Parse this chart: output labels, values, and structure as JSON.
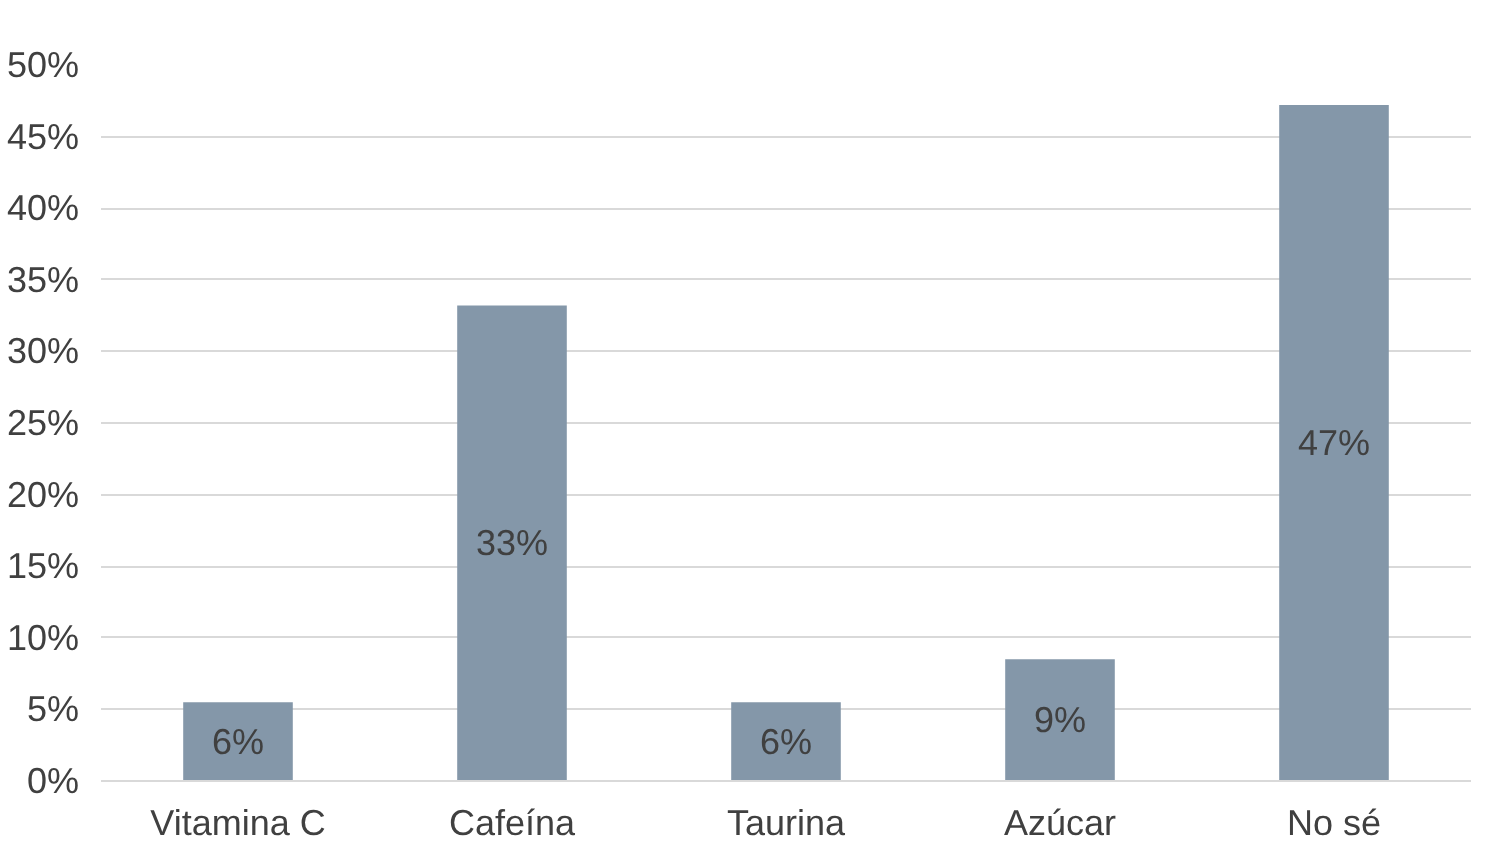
{
  "chart_data": {
    "type": "bar",
    "categories": [
      "Vitamina C",
      "Cafeína",
      "Taurina",
      "Azúcar",
      "No sé"
    ],
    "values": [
      5.5,
      33.2,
      5.5,
      8.5,
      47.2
    ],
    "value_labels": [
      "6%",
      "33%",
      "6%",
      "9%",
      "47%"
    ],
    "color": "#8497a9",
    "ylim": [
      0,
      50
    ],
    "yticks": [
      {
        "value": 0,
        "label": "0%"
      },
      {
        "value": 5,
        "label": "5%"
      },
      {
        "value": 10,
        "label": "10%"
      },
      {
        "value": 15,
        "label": "15%"
      },
      {
        "value": 20,
        "label": "20%"
      },
      {
        "value": 25,
        "label": "25%"
      },
      {
        "value": 30,
        "label": "30%"
      },
      {
        "value": 35,
        "label": "35%"
      },
      {
        "value": 40,
        "label": "40%"
      },
      {
        "value": 45,
        "label": "45%"
      },
      {
        "value": 50,
        "label": "50%"
      }
    ],
    "grid": "y"
  }
}
